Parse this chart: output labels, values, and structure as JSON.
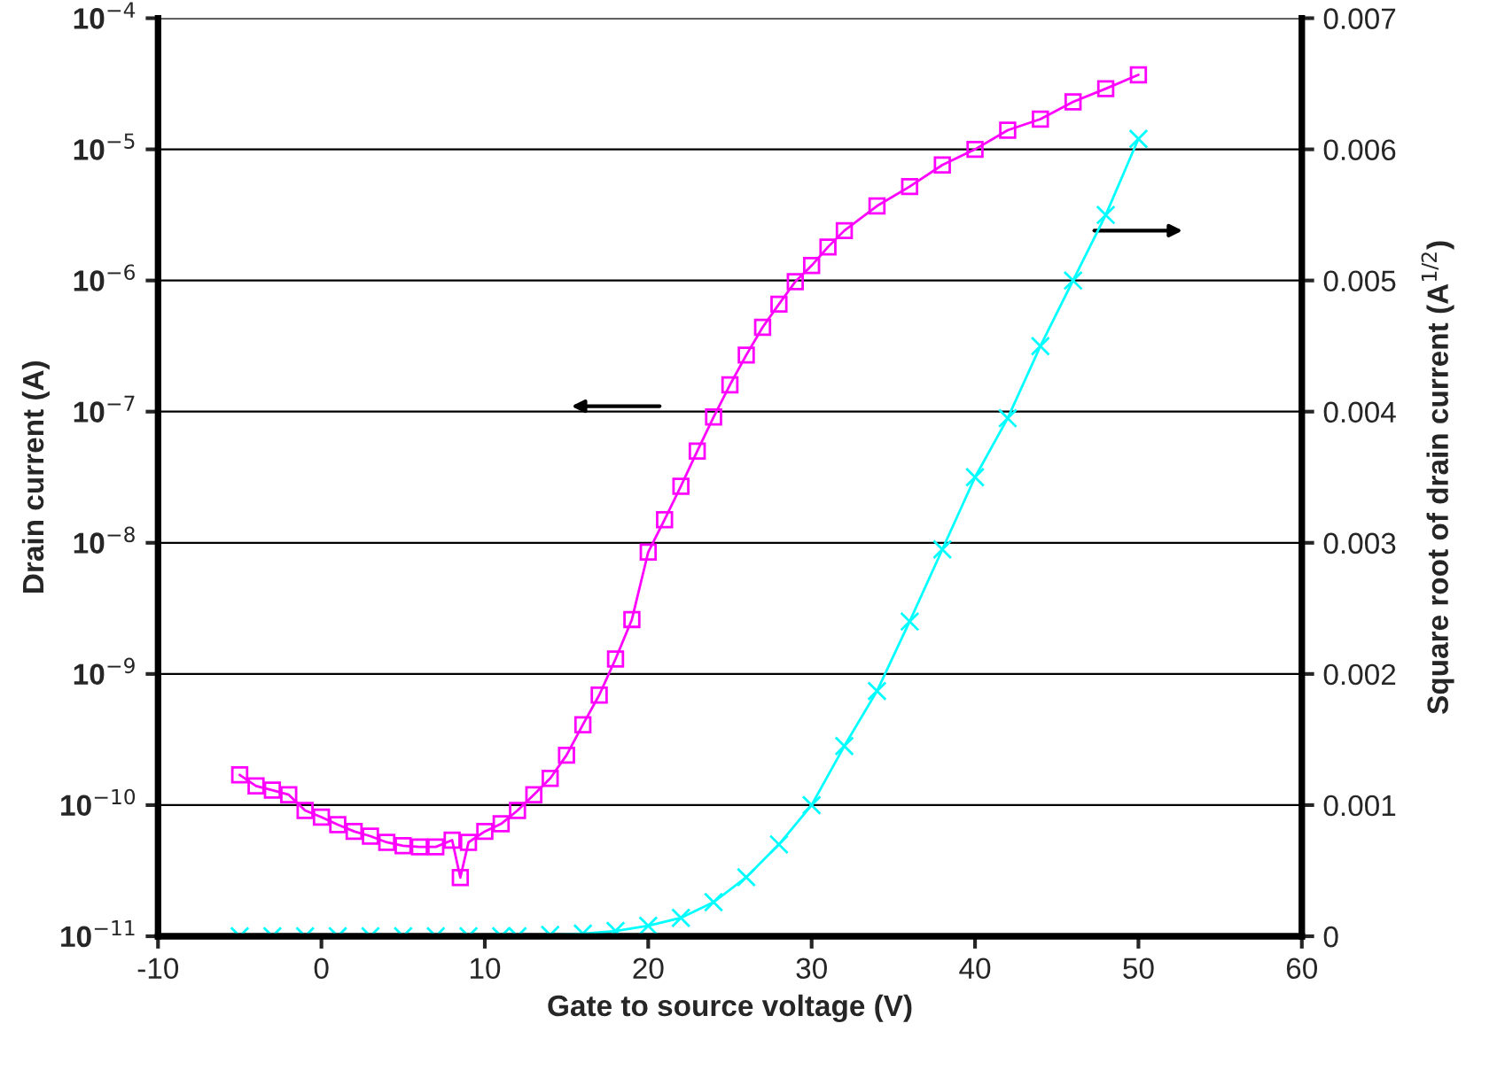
{
  "chart_data": {
    "type": "line",
    "xlabel": "Gate to source voltage (V)",
    "ylabel": "Drain current (A)",
    "y2label": "Square root of drain current (A$^{1/2}$)",
    "xlim": [
      -10,
      60
    ],
    "xticks": [
      -10,
      0,
      10,
      20,
      30,
      40,
      50,
      60
    ],
    "ylim": [
      1e-11,
      0.0001
    ],
    "log": "y",
    "yticks": [
      {
        "value": 1e-11,
        "label": "10$^{−11}$"
      },
      {
        "value": 1e-10,
        "label": "10$^{−10}$"
      },
      {
        "value": 1e-09,
        "label": "10$^{−9}$"
      },
      {
        "value": 1e-08,
        "label": "10$^{−8}$"
      },
      {
        "value": 1e-07,
        "label": "10$^{−7}$"
      },
      {
        "value": 1e-06,
        "label": "10$^{−6}$"
      },
      {
        "value": 1e-05,
        "label": "10$^{−5}$"
      },
      {
        "value": 0.0001,
        "label": "10$^{−4}$"
      }
    ],
    "y2lim": [
      0,
      0.007
    ],
    "y2ticks": [
      0,
      0.001,
      0.002,
      0.003,
      0.004,
      0.005,
      0.006,
      0.007
    ],
    "grid": "y",
    "series": [
      {
        "color": "#ff00ff",
        "marker": "square",
        "x": [
          -5,
          -4,
          -3,
          -2,
          -1,
          0,
          1,
          2,
          3,
          4,
          5,
          6,
          7,
          8,
          8.5,
          9,
          10,
          11,
          12,
          13,
          14,
          15,
          16,
          17,
          18,
          19,
          20,
          21,
          22,
          23,
          24,
          25,
          26,
          27,
          28,
          29,
          30,
          31,
          32,
          34,
          36,
          38,
          40,
          42,
          44,
          46,
          48,
          50
        ],
        "values": [
          1.7e-10,
          1.4e-10,
          1.3e-10,
          1.2e-10,
          9.1e-11,
          8.1e-11,
          7.1e-11,
          6.3e-11,
          5.8e-11,
          5.2e-11,
          4.9e-11,
          4.8e-11,
          4.8e-11,
          5.4e-11,
          2.8e-11,
          5.2e-11,
          6.3e-11,
          7.2e-11,
          9.1e-11,
          1.2e-10,
          1.6e-10,
          2.4e-10,
          4.1e-10,
          6.9e-10,
          1.3e-09,
          2.6e-09,
          8.5e-09,
          1.5e-08,
          2.7e-08,
          5e-08,
          9.1e-08,
          1.6e-07,
          2.7e-07,
          4.4e-07,
          6.6e-07,
          9.8e-07,
          1.3e-06,
          1.8e-06,
          2.4e-06,
          3.7e-06,
          5.2e-06,
          7.6e-06,
          1e-05,
          1.4e-05,
          1.7e-05,
          2.3e-05,
          2.9e-05,
          3.7e-05
        ]
      },
      {
        "color": "#00ffff",
        "marker": "cross",
        "axis": "y2",
        "x": [
          -5,
          -3,
          -1,
          1,
          3,
          5,
          7,
          9,
          11,
          12,
          14,
          16,
          18,
          20,
          22,
          24,
          26,
          28,
          30,
          32,
          34,
          36,
          38,
          40,
          42,
          44,
          46,
          48,
          50
        ],
        "values": [
          0,
          0,
          0,
          0,
          0,
          0,
          0,
          0,
          0,
          0,
          1e-05,
          2e-05,
          4e-05,
          8e-05,
          0.00014,
          0.00026,
          0.00045,
          0.0007,
          0.001,
          0.00145,
          0.00187,
          0.0024,
          0.00295,
          0.0035,
          0.00395,
          0.0045,
          0.005,
          0.0055,
          0.00608
        ]
      }
    ]
  }
}
